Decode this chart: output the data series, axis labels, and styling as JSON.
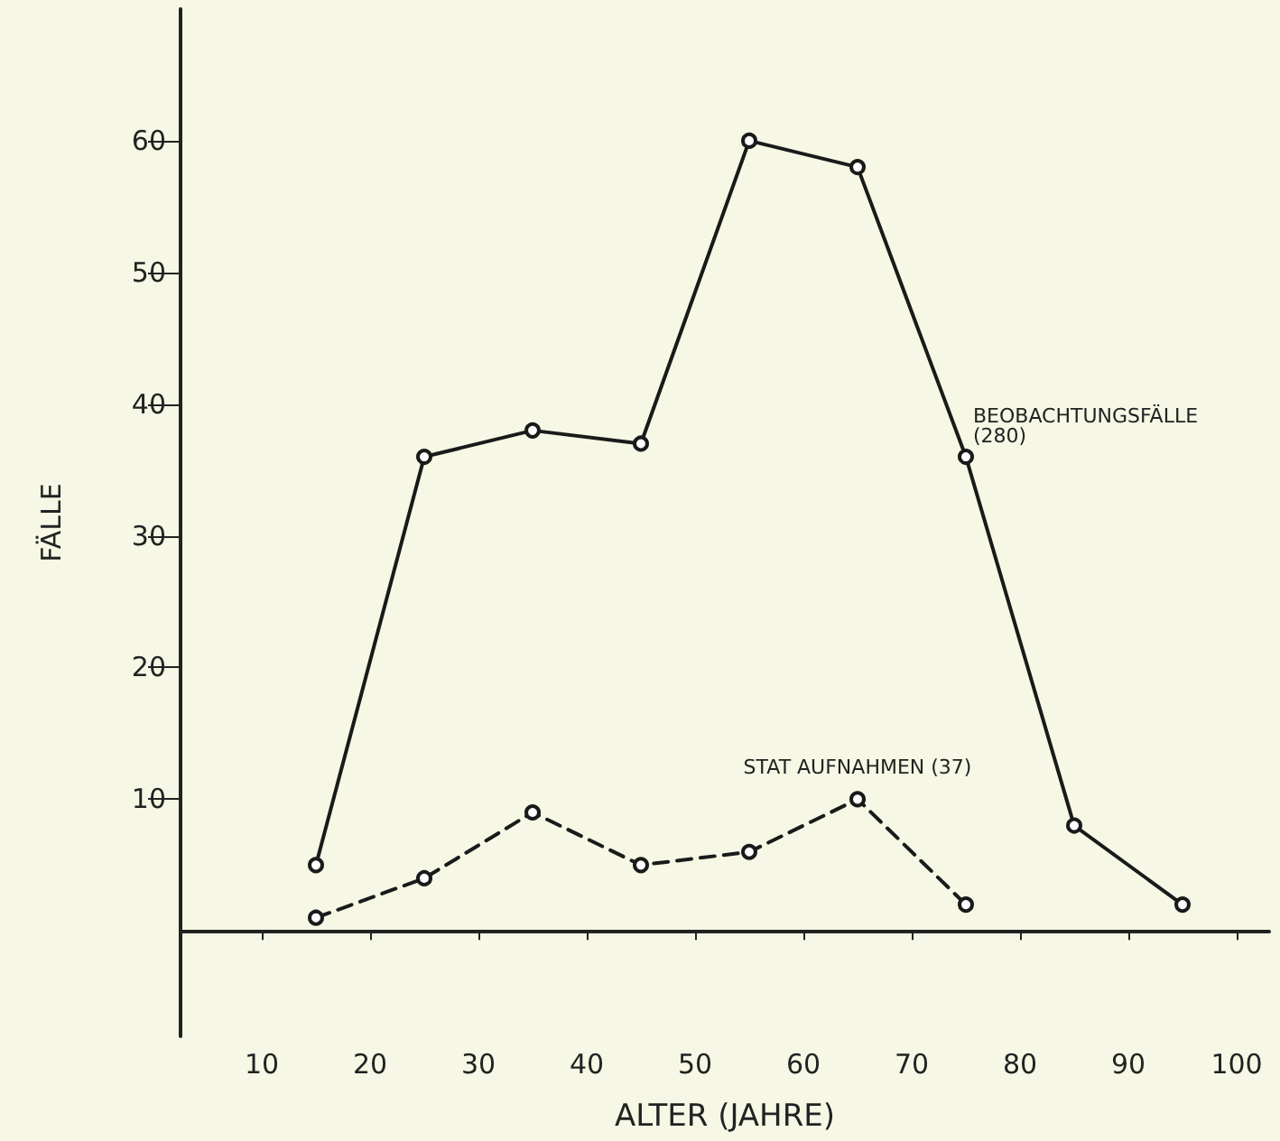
{
  "chart_data": {
    "type": "line",
    "xlabel": "ALTER (JAHRE)",
    "ylabel": "FÄLLE",
    "x": [
      15,
      25,
      35,
      45,
      55,
      65,
      75,
      85,
      95
    ],
    "series": [
      {
        "color": "#1a1a1a",
        "line_style": "solid",
        "values": [
          5,
          36,
          38,
          37,
          60,
          58,
          36,
          8,
          2
        ]
      },
      {
        "color": "#1a1a1a",
        "line_style": "dashed",
        "x": [
          15,
          25,
          35,
          45,
          55,
          65,
          75
        ],
        "values": [
          1,
          4,
          9,
          5,
          6,
          10,
          2
        ]
      }
    ],
    "xlim": [
      2.5,
      103
    ],
    "xticks": [
      10,
      20,
      30,
      40,
      50,
      60,
      70,
      80,
      90,
      100
    ],
    "ylim": [
      -8,
      70
    ],
    "yticks": [
      10,
      20,
      30,
      40,
      50,
      60
    ],
    "grid": false,
    "marker": "circle",
    "annotations": [
      {
        "text": "BEOBACHTUNGSFÄLLE (280)",
        "x": 75,
        "y": 36
      },
      {
        "text": "STAT AUFNAHMEN (37)",
        "x": 65,
        "y": 10
      }
    ]
  }
}
